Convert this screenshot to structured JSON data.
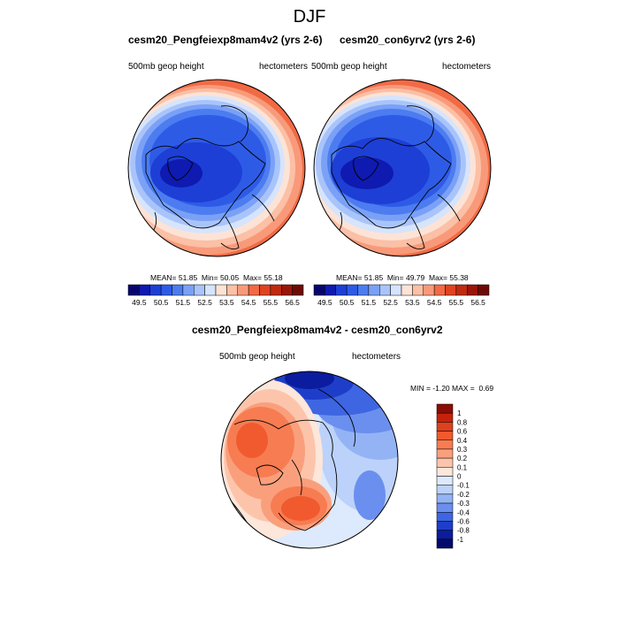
{
  "figure": {
    "title": "DJF"
  },
  "panels": [
    {
      "title": "cesm20_Pengfeiexp8mam4v2 (yrs 2-6)",
      "left_label": "500mb geop height",
      "right_label": "hectometers",
      "stats": {
        "mean_label": "MEAN=",
        "mean": "51.85",
        "min_label": "Min=",
        "min": "50.05",
        "max_label": "Max=",
        "max": "55.18"
      }
    },
    {
      "title": "cesm20_con6yrv2 (yrs 2-6)",
      "left_label": "500mb geop height",
      "right_label": "hectometers",
      "stats": {
        "mean_label": "MEAN=",
        "mean": "51.85",
        "min_label": "Min=",
        "min": "49.79",
        "max_label": "Max=",
        "max": "55.38"
      }
    }
  ],
  "diff_panel": {
    "title": "cesm20_Pengfeiexp8mam4v2 - cesm20_con6yrv2",
    "left_label": "500mb geop height",
    "right_label": "hectometers",
    "minmax": {
      "min_label": "MIN =",
      "min": "-1.20",
      "max_label": "MAX =",
      "max": "0.69"
    }
  },
  "colorbar_abs": {
    "labels": [
      "49.5",
      "50.5",
      "51.5",
      "52.5",
      "53.5",
      "54.5",
      "55.5",
      "56.5"
    ],
    "colors": [
      "#08066e",
      "#0f1ab0",
      "#1d3fd6",
      "#2e5be6",
      "#4c7cf0",
      "#7aa1f6",
      "#a9c4fa",
      "#d6e4fc",
      "#fde3d6",
      "#fbc0a6",
      "#f89a7a",
      "#f26a45",
      "#e0431f",
      "#c02a0f",
      "#9a1608",
      "#6e0a05"
    ]
  },
  "colorbar_diff": {
    "labels": [
      "1",
      "0.8",
      "0.6",
      "0.4",
      "0.3",
      "0.2",
      "0.1",
      "0",
      "-0.1",
      "-0.2",
      "-0.3",
      "-0.4",
      "-0.6",
      "-0.8",
      "-1"
    ],
    "colors": [
      "#8a0e05",
      "#c5220c",
      "#e0401c",
      "#f05a2e",
      "#f77c52",
      "#fa9f7c",
      "#fcc5ab",
      "#fde6da",
      "#dde9fc",
      "#bcd2fa",
      "#94b3f5",
      "#6b8fee",
      "#3e65e2",
      "#1e3ec9",
      "#0b1c9e",
      "#050a6a"
    ]
  },
  "chart_data": [
    {
      "type": "heatmap",
      "title": "cesm20_Pengfeiexp8mam4v2 (yrs 2-6)",
      "variable": "500mb geop height",
      "units": "hectometers",
      "projection": "north polar stereographic",
      "mean": 51.85,
      "min": 50.05,
      "max": 55.18,
      "levels": [
        49.5,
        50.5,
        51.5,
        52.5,
        53.5,
        54.5,
        55.5,
        56.5
      ]
    },
    {
      "type": "heatmap",
      "title": "cesm20_con6yrv2 (yrs 2-6)",
      "variable": "500mb geop height",
      "units": "hectometers",
      "projection": "north polar stereographic",
      "mean": 51.85,
      "min": 49.79,
      "max": 55.38,
      "levels": [
        49.5,
        50.5,
        51.5,
        52.5,
        53.5,
        54.5,
        55.5,
        56.5
      ]
    },
    {
      "type": "heatmap",
      "title": "cesm20_Pengfeiexp8mam4v2 - cesm20_con6yrv2",
      "variable": "500mb geop height",
      "units": "hectometers",
      "projection": "north polar stereographic",
      "min": -1.2,
      "max": 0.69,
      "levels": [
        -1,
        -0.8,
        -0.6,
        -0.4,
        -0.3,
        -0.2,
        -0.1,
        0,
        0.1,
        0.2,
        0.3,
        0.4,
        0.6,
        0.8,
        1
      ]
    }
  ]
}
